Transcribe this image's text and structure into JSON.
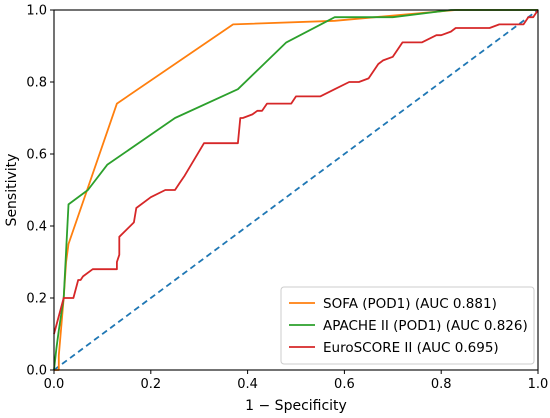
{
  "chart_data": {
    "type": "line",
    "xlabel": "1 − Specificity",
    "ylabel": "Sensitivity",
    "xlim": [
      0,
      1
    ],
    "ylim": [
      0,
      1
    ],
    "xticks": [
      "0.0",
      "0.2",
      "0.4",
      "0.6",
      "0.8",
      "1.0"
    ],
    "yticks": [
      "0.0",
      "0.2",
      "0.4",
      "0.6",
      "0.8",
      "1.0"
    ],
    "grid": false,
    "legend_position": "bottom-right",
    "reference_line": {
      "x": [
        0,
        1
      ],
      "y": [
        0,
        1
      ],
      "color": "#1f77b4",
      "style": "dashed"
    },
    "series": [
      {
        "name": "SOFA (POD1) (AUC 0.881)",
        "color": "#ff7f0e",
        "x": [
          0.0,
          0.01,
          0.01,
          0.02,
          0.025,
          0.03,
          0.13,
          0.37,
          0.58,
          0.83,
          1.0
        ],
        "y": [
          0.0,
          0.0,
          0.04,
          0.2,
          0.3,
          0.35,
          0.74,
          0.96,
          0.97,
          1.0,
          1.0
        ]
      },
      {
        "name": "APACHE II (POD1) (AUC 0.826)",
        "color": "#2ca02c",
        "x": [
          0.0,
          0.005,
          0.01,
          0.02,
          0.03,
          0.07,
          0.11,
          0.25,
          0.38,
          0.48,
          0.58,
          0.7,
          0.82,
          1.0
        ],
        "y": [
          0.0,
          0.06,
          0.11,
          0.2,
          0.46,
          0.5,
          0.57,
          0.7,
          0.78,
          0.91,
          0.98,
          0.98,
          1.0,
          1.0
        ]
      },
      {
        "name": "EuroSCORE II (AUC 0.695)",
        "color": "#d62728",
        "x": [
          0.0,
          0.02,
          0.04,
          0.05,
          0.055,
          0.06,
          0.08,
          0.13,
          0.13,
          0.135,
          0.135,
          0.15,
          0.165,
          0.17,
          0.2,
          0.23,
          0.25,
          0.26,
          0.26,
          0.27,
          0.31,
          0.38,
          0.385,
          0.39,
          0.41,
          0.42,
          0.43,
          0.44,
          0.49,
          0.5,
          0.55,
          0.58,
          0.58,
          0.61,
          0.63,
          0.65,
          0.67,
          0.68,
          0.7,
          0.72,
          0.73,
          0.76,
          0.79,
          0.8,
          0.82,
          0.83,
          0.84,
          0.86,
          0.88,
          0.9,
          0.92,
          0.94,
          0.96,
          0.97,
          0.98,
          0.99,
          1.0
        ],
        "y": [
          0.1,
          0.2,
          0.2,
          0.25,
          0.25,
          0.26,
          0.28,
          0.28,
          0.3,
          0.32,
          0.37,
          0.39,
          0.41,
          0.45,
          0.48,
          0.5,
          0.5,
          0.52,
          0.52,
          0.54,
          0.63,
          0.63,
          0.7,
          0.7,
          0.71,
          0.72,
          0.72,
          0.74,
          0.74,
          0.76,
          0.76,
          0.78,
          0.78,
          0.8,
          0.8,
          0.81,
          0.85,
          0.86,
          0.87,
          0.91,
          0.91,
          0.91,
          0.93,
          0.93,
          0.94,
          0.95,
          0.95,
          0.95,
          0.95,
          0.95,
          0.96,
          0.96,
          0.96,
          0.96,
          0.98,
          0.98,
          1.0
        ]
      }
    ]
  }
}
